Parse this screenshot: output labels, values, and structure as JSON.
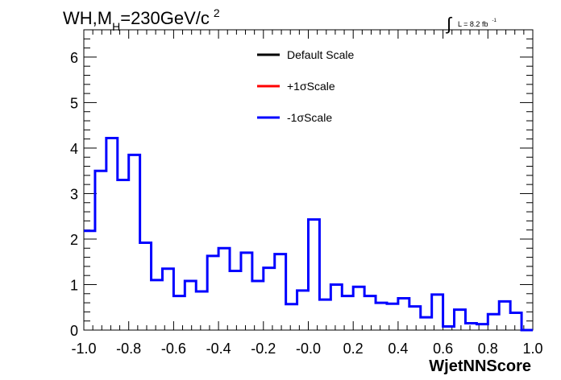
{
  "chart_data": {
    "type": "line",
    "title": {
      "prefix": "WH,M",
      "sub": "H",
      "main": "=230GeV/c",
      "sup": "2"
    },
    "lumi": {
      "integral_sign": "∫",
      "text": "L = 8.2 fb",
      "sup": "-1"
    },
    "xlabel": "WjetNNScore",
    "ylabel": "",
    "xlim": [
      -1.0,
      1.0
    ],
    "ylim": [
      0,
      6.6
    ],
    "x_ticks": [
      "-1.0",
      "-0.8",
      "-0.6",
      "-0.4",
      "-0.2",
      "-0.0",
      "0.2",
      "0.4",
      "0.6",
      "0.8",
      "1.0"
    ],
    "y_ticks": [
      "0",
      "1",
      "2",
      "3",
      "4",
      "5",
      "6"
    ],
    "bin_edges": [
      -1.0,
      0.05
    ],
    "legend": {
      "position": "top-center",
      "entries": [
        {
          "label": "Default Scale",
          "color": "#000000"
        },
        {
          "label": "+1σScale",
          "color": "#ff0000"
        },
        {
          "label": "-1σScale",
          "color": "#0000ff"
        }
      ]
    },
    "series": [
      {
        "name": "-1σScale",
        "color": "#0000ff",
        "step": true,
        "values": [
          2.18,
          3.5,
          4.22,
          3.3,
          3.85,
          1.92,
          1.1,
          1.35,
          0.75,
          1.08,
          0.85,
          1.63,
          1.8,
          1.3,
          1.7,
          1.08,
          1.37,
          1.67,
          0.57,
          0.87,
          2.43,
          0.67,
          1.0,
          0.75,
          0.95,
          0.75,
          0.6,
          0.58,
          0.7,
          0.52,
          0.28,
          0.78,
          0.08,
          0.45,
          0.15,
          0.13,
          0.35,
          0.63,
          0.38,
          0.0
        ]
      }
    ]
  }
}
